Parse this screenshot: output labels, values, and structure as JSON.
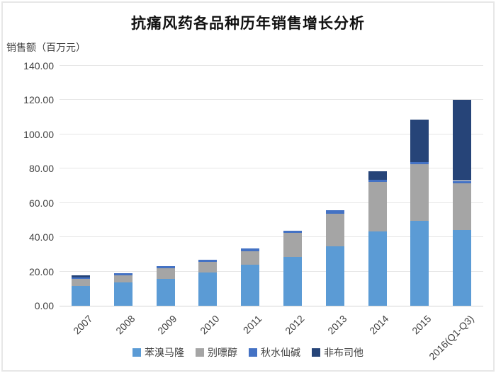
{
  "chart_data": {
    "type": "bar",
    "stacked": true,
    "title": "抗痛风药各品种历年销售增长分析",
    "ylabel": "销售额（百万元）",
    "xlabel": "",
    "categories": [
      "2007",
      "2008",
      "2009",
      "2010",
      "2011",
      "2012",
      "2013",
      "2014",
      "2015",
      "2016(Q1-Q3)"
    ],
    "series": [
      {
        "name": "苯溴马隆",
        "color": "#5B9BD5",
        "values": [
          11.6,
          13.8,
          15.8,
          19.5,
          23.8,
          28.6,
          34.8,
          43.3,
          49.5,
          44.0
        ]
      },
      {
        "name": "别嘌醇",
        "color": "#A5A5A5",
        "values": [
          3.9,
          4.0,
          6.0,
          6.2,
          8.2,
          14.0,
          18.8,
          28.9,
          33.0,
          27.5
        ]
      },
      {
        "name": "秋水仙碱",
        "color": "#4472C4",
        "values": [
          1.2,
          1.2,
          1.2,
          1.1,
          1.3,
          1.0,
          2.0,
          1.4,
          1.4,
          1.4
        ]
      },
      {
        "name": "非布司他",
        "color": "#264478",
        "values": [
          1.0,
          0,
          0,
          0,
          0,
          0,
          0,
          4.8,
          24.8,
          47.4
        ]
      }
    ],
    "ylim": [
      0,
      140
    ],
    "yticks": [
      "0.00",
      "20.00",
      "40.00",
      "60.00",
      "80.00",
      "100.00",
      "120.00",
      "140.00"
    ],
    "grid": true,
    "legend_position": "bottom"
  }
}
